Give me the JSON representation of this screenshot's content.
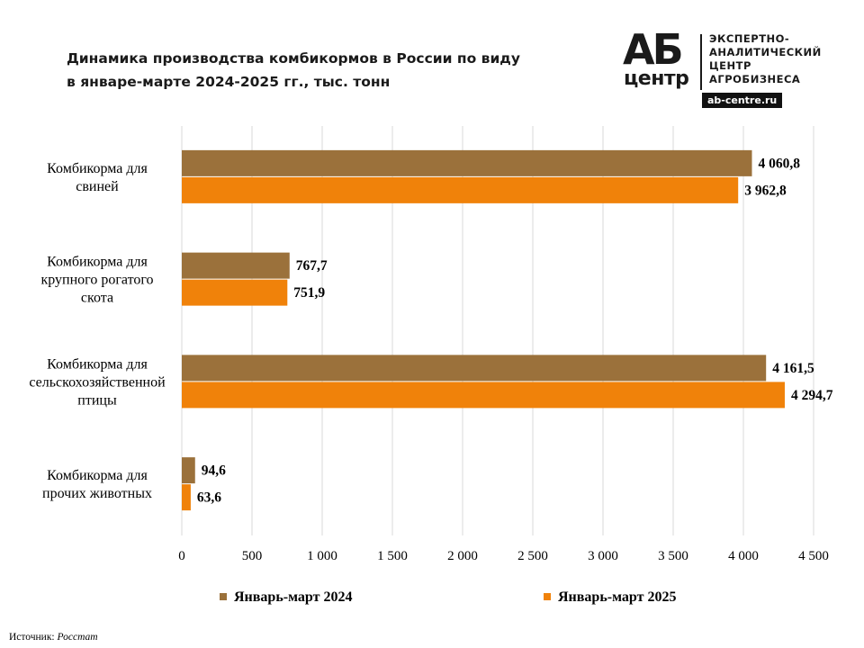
{
  "title": {
    "line1": "Динамика производства комбикормов в России по виду",
    "line2": "в январе-марте 2024-2025 гг., тыс. тонн"
  },
  "logo": {
    "mark_top": "АБ",
    "mark_bottom": "центр",
    "lines": [
      "ЭКСПЕРТНО-",
      "АНАЛИТИЧЕСКИЙ",
      "ЦЕНТР",
      "АГРОБИЗНЕСА"
    ],
    "site": "ab-centre.ru"
  },
  "source": {
    "label": "Источник:",
    "value": "Росстат"
  },
  "colors": {
    "series_2024": "#9b713b",
    "series_2025": "#f0820a",
    "grid": "#d9d9d9"
  },
  "chart_data": {
    "type": "bar",
    "orientation": "horizontal",
    "categories": [
      [
        "Комбикорма для",
        "свиней"
      ],
      [
        "Комбикорма для",
        "крупного рогатого",
        "скота"
      ],
      [
        "Комбикорма для",
        "сельскохозяйственной",
        "птицы"
      ],
      [
        "Комбикорма для",
        "прочих животных"
      ]
    ],
    "series": [
      {
        "name": "Январь-март 2024",
        "values": [
          4060.8,
          767.7,
          4161.5,
          94.6
        ],
        "labels": [
          "4 060,8",
          "767,7",
          "4 161,5",
          "94,6"
        ]
      },
      {
        "name": "Январь-март 2025",
        "values": [
          3962.8,
          751.9,
          4294.7,
          63.6
        ],
        "labels": [
          "3 962,8",
          "751,9",
          "4 294,7",
          "63,6"
        ]
      }
    ],
    "xlim": [
      0,
      4500
    ],
    "xticks": [
      0,
      500,
      1000,
      1500,
      2000,
      2500,
      3000,
      3500,
      4000,
      4500
    ],
    "xtick_labels": [
      "0",
      "500",
      "1 000",
      "1 500",
      "2 000",
      "2 500",
      "3 000",
      "3 500",
      "4 000",
      "4 500"
    ],
    "grid": true,
    "legend_position": "bottom"
  }
}
